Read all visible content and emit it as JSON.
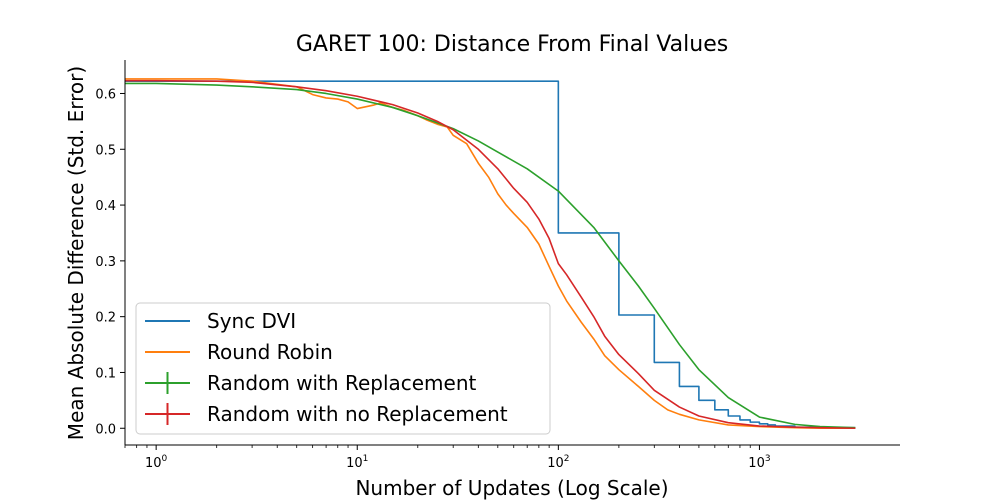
{
  "chart_data": {
    "type": "line",
    "title": "GARET 100: Distance From Final Values",
    "xlabel": "Number of Updates (Log Scale)",
    "ylabel": "Mean Absolute Difference (Std. Error)",
    "xscale": "log",
    "xlim": [
      0.7,
      5000
    ],
    "ylim": [
      -0.03,
      0.66
    ],
    "grid": false,
    "legend_position": "lower-left",
    "yticks": [
      {
        "value": 0.0,
        "label": "0.0"
      },
      {
        "value": 0.1,
        "label": "0.1"
      },
      {
        "value": 0.2,
        "label": "0.2"
      },
      {
        "value": 0.3,
        "label": "0.3"
      },
      {
        "value": 0.4,
        "label": "0.4"
      },
      {
        "value": 0.5,
        "label": "0.5"
      },
      {
        "value": 0.6,
        "label": "0.6"
      }
    ],
    "xticks": [
      {
        "value": 1,
        "base": "10",
        "exp": "0"
      },
      {
        "value": 10,
        "base": "10",
        "exp": "1"
      },
      {
        "value": 100,
        "base": "10",
        "exp": "2"
      },
      {
        "value": 1000,
        "base": "10",
        "exp": "3"
      }
    ],
    "series": [
      {
        "name": "Sync DVI",
        "color": "#1f77b4",
        "marker": "line",
        "step": true,
        "x": [
          0.7,
          100,
          100,
          200,
          200,
          300,
          300,
          400,
          400,
          500,
          500,
          600,
          600,
          700,
          700,
          800,
          800,
          900,
          900,
          1000,
          1000,
          1100,
          1100,
          1200,
          1200,
          1500,
          1500,
          2000,
          2000,
          3000
        ],
        "y": [
          0.622,
          0.622,
          0.35,
          0.35,
          0.203,
          0.203,
          0.118,
          0.118,
          0.075,
          0.075,
          0.05,
          0.05,
          0.033,
          0.033,
          0.022,
          0.022,
          0.015,
          0.015,
          0.011,
          0.011,
          0.008,
          0.008,
          0.006,
          0.006,
          0.004,
          0.004,
          0.002,
          0.002,
          0.001,
          0.001
        ]
      },
      {
        "name": "Round Robin",
        "color": "#ff7f0e",
        "marker": "line",
        "step": false,
        "x": [
          0.7,
          1,
          2,
          3,
          5,
          6,
          7,
          8,
          9,
          10,
          12,
          13,
          15,
          17,
          20,
          22,
          25,
          28,
          30,
          35,
          40,
          45,
          50,
          55,
          60,
          70,
          80,
          90,
          100,
          110,
          130,
          150,
          170,
          200,
          250,
          300,
          350,
          400,
          500,
          700,
          1000,
          1500,
          2000,
          3000
        ],
        "y": [
          0.626,
          0.626,
          0.626,
          0.622,
          0.612,
          0.598,
          0.592,
          0.59,
          0.585,
          0.573,
          0.579,
          0.583,
          0.575,
          0.57,
          0.56,
          0.553,
          0.545,
          0.54,
          0.525,
          0.51,
          0.475,
          0.45,
          0.42,
          0.4,
          0.385,
          0.36,
          0.33,
          0.29,
          0.255,
          0.228,
          0.19,
          0.16,
          0.13,
          0.105,
          0.075,
          0.05,
          0.033,
          0.025,
          0.015,
          0.006,
          0.003,
          0.001,
          0.0,
          0.0
        ]
      },
      {
        "name": "Random with Replacement",
        "color": "#2ca02c",
        "marker": "errorbar",
        "step": false,
        "x": [
          0.7,
          1,
          2,
          3,
          5,
          7,
          10,
          15,
          20,
          30,
          40,
          50,
          70,
          100,
          150,
          200,
          250,
          300,
          400,
          500,
          700,
          1000,
          1500,
          2000,
          3000
        ],
        "y": [
          0.618,
          0.618,
          0.615,
          0.612,
          0.607,
          0.6,
          0.59,
          0.575,
          0.56,
          0.537,
          0.515,
          0.495,
          0.465,
          0.425,
          0.36,
          0.3,
          0.255,
          0.215,
          0.15,
          0.105,
          0.055,
          0.02,
          0.007,
          0.003,
          0.001
        ]
      },
      {
        "name": "Random with no Replacement",
        "color": "#d62728",
        "marker": "errorbar",
        "step": false,
        "x": [
          0.7,
          1,
          2,
          3,
          5,
          7,
          10,
          15,
          20,
          25,
          30,
          40,
          50,
          60,
          70,
          80,
          90,
          100,
          110,
          130,
          150,
          170,
          200,
          250,
          300,
          400,
          500,
          700,
          1000,
          1500,
          2000,
          3000
        ],
        "y": [
          0.623,
          0.623,
          0.622,
          0.62,
          0.612,
          0.605,
          0.595,
          0.58,
          0.565,
          0.55,
          0.535,
          0.5,
          0.465,
          0.43,
          0.405,
          0.375,
          0.34,
          0.295,
          0.275,
          0.235,
          0.2,
          0.165,
          0.132,
          0.098,
          0.068,
          0.038,
          0.022,
          0.01,
          0.004,
          0.002,
          0.001,
          0.0
        ]
      }
    ]
  }
}
